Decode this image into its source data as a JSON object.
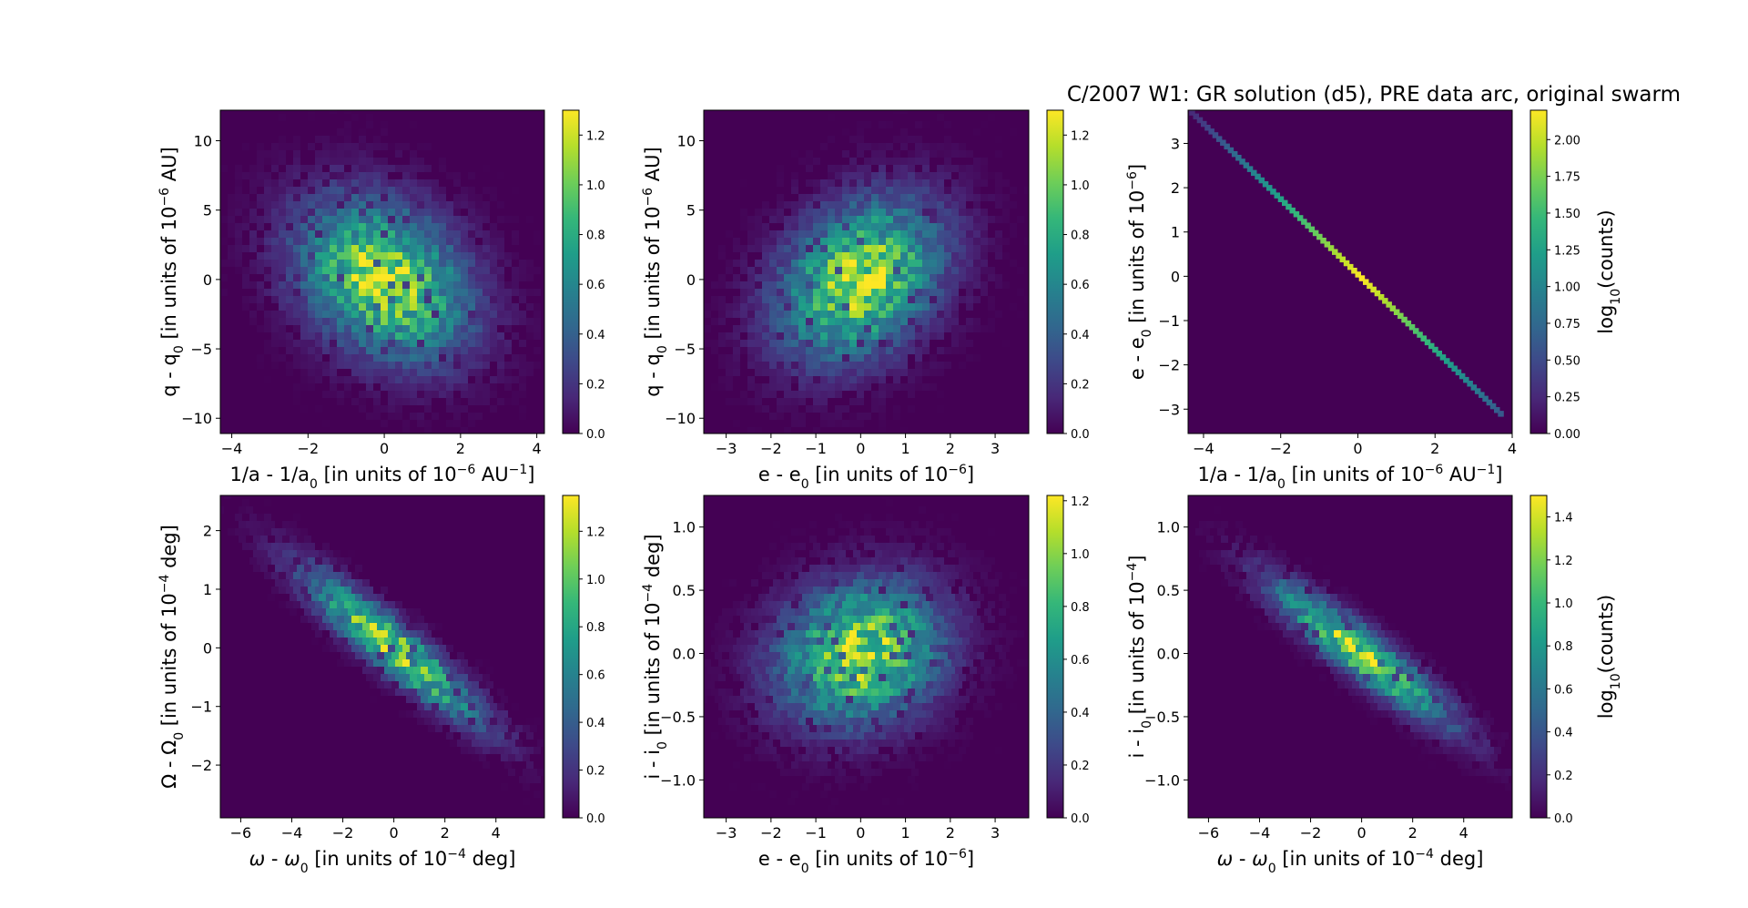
{
  "figure": {
    "title": "C/2007 W1: GR solution (d5), PRE data arc, original swarm",
    "colormap": [
      "#440154",
      "#482878",
      "#3e4989",
      "#31688e",
      "#26828e",
      "#1f9e89",
      "#35b779",
      "#6ece58",
      "#b5de2b",
      "#fde725"
    ]
  },
  "chart_data": [
    {
      "type": "heatmap",
      "id": "p11",
      "xlabel_main": "1/a - 1/a",
      "xlabel_sub": "0",
      "xlabel_tail": " [in units of 10",
      "xlabel_sup": "−6",
      "xlabel_end": " AU",
      "xlabel_sup2": "−1",
      "xlabel_close": "]",
      "ylabel_main": "q - q",
      "ylabel_sub": "0",
      "ylabel_tail": " [in units of 10",
      "ylabel_sup": "−6",
      "ylabel_end": " AU]",
      "xlim": [
        -4.3,
        4.2
      ],
      "ylim": [
        -11.1,
        12.2
      ],
      "xticks": [
        -4,
        -2,
        0,
        2,
        4
      ],
      "xticklabels": [
        "−4",
        "−2",
        "0",
        "2",
        "4"
      ],
      "yticks": [
        -10,
        -5,
        0,
        5,
        10
      ],
      "yticklabels": [
        "−10",
        "−5",
        "0",
        "5",
        "10"
      ],
      "sx": 1.5,
      "sy": 3.8,
      "rho": -0.3,
      "colorbar": {
        "range": [
          0,
          1.3
        ],
        "ticks": [
          0,
          0.2,
          0.4,
          0.6,
          0.8,
          1.0,
          1.2
        ],
        "ticklabels": [
          "0.0",
          "0.2",
          "0.4",
          "0.6",
          "0.8",
          "1.0",
          "1.2"
        ],
        "label": ""
      }
    },
    {
      "type": "heatmap",
      "id": "p12",
      "xlabel_main": "e - e",
      "xlabel_sub": "0",
      "xlabel_tail": " [in units of 10",
      "xlabel_sup": "−6",
      "xlabel_end": "]",
      "ylabel_main": "q - q",
      "ylabel_sub": "0",
      "ylabel_tail": " [in units of 10",
      "ylabel_sup": "−6",
      "ylabel_end": " AU]",
      "xlim": [
        -3.5,
        3.75
      ],
      "ylim": [
        -11.1,
        12.2
      ],
      "xticks": [
        -3,
        -2,
        -1,
        0,
        1,
        2,
        3
      ],
      "xticklabels": [
        "−3",
        "−2",
        "−1",
        "0",
        "1",
        "2",
        "3"
      ],
      "yticks": [
        -10,
        -5,
        0,
        5,
        10
      ],
      "yticklabels": [
        "−10",
        "−5",
        "0",
        "5",
        "10"
      ],
      "sx": 1.2,
      "sy": 3.8,
      "rho": 0.3,
      "colorbar": {
        "range": [
          0,
          1.3
        ],
        "ticks": [
          0,
          0.2,
          0.4,
          0.6,
          0.8,
          1.0,
          1.2
        ],
        "ticklabels": [
          "0.0",
          "0.2",
          "0.4",
          "0.6",
          "0.8",
          "1.0",
          "1.2"
        ],
        "label": ""
      }
    },
    {
      "type": "heatmap",
      "id": "p13",
      "line": true,
      "xlabel_main": "1/a - 1/a",
      "xlabel_sub": "0",
      "xlabel_tail": " [in units of 10",
      "xlabel_sup": "−6",
      "xlabel_end": " AU",
      "xlabel_sup2": "−1",
      "xlabel_close": "]",
      "ylabel_main": "e - e",
      "ylabel_sub": "0",
      "ylabel_tail": " [in units of 10",
      "ylabel_sup": "−6",
      "ylabel_end": "]",
      "xlim": [
        -4.4,
        4.0
      ],
      "ylim": [
        -3.55,
        3.75
      ],
      "xticks": [
        -4,
        -2,
        0,
        2,
        4
      ],
      "xticklabels": [
        "−4",
        "−2",
        "0",
        "2",
        "4"
      ],
      "yticks": [
        -3,
        -2,
        -1,
        0,
        1,
        2,
        3
      ],
      "yticklabels": [
        "−3",
        "−2",
        "−1",
        "0",
        "1",
        "2",
        "3"
      ],
      "line_from": [
        -4.3,
        3.7
      ],
      "line_to": [
        3.7,
        -3.1
      ],
      "colorbar": {
        "range": [
          0,
          2.2
        ],
        "ticks": [
          0,
          0.25,
          0.5,
          0.75,
          1.0,
          1.25,
          1.5,
          1.75,
          2.0
        ],
        "ticklabels": [
          "0.00",
          "0.25",
          "0.50",
          "0.75",
          "1.00",
          "1.25",
          "1.50",
          "1.75",
          "2.00"
        ],
        "label": "log",
        "label_sub": "10",
        "label_tail": "(counts)"
      }
    },
    {
      "type": "heatmap",
      "id": "p21",
      "xlabel_main": "ω - ω",
      "xlabel_sub": "0",
      "xlabel_tail": " [in units of 10",
      "xlabel_sup": "−4",
      "xlabel_end": " deg]",
      "ylabel_main": "Ω - Ω",
      "ylabel_sub": "0",
      "ylabel_tail": " [in units of 10",
      "ylabel_sup": "−4",
      "ylabel_end": " deg]",
      "xlim": [
        -6.8,
        5.9
      ],
      "ylim": [
        -2.9,
        2.6
      ],
      "xticks": [
        -6,
        -4,
        -2,
        0,
        2,
        4
      ],
      "xticklabels": [
        "−6",
        "−4",
        "−2",
        "0",
        "2",
        "4"
      ],
      "yticks": [
        -2,
        -1,
        0,
        1,
        2
      ],
      "yticklabels": [
        "−2",
        "−1",
        "0",
        "1",
        "2"
      ],
      "sx": 2.3,
      "sy": 0.85,
      "rho": -0.92,
      "colorbar": {
        "range": [
          0,
          1.35
        ],
        "ticks": [
          0,
          0.2,
          0.4,
          0.6,
          0.8,
          1.0,
          1.2
        ],
        "ticklabels": [
          "0.0",
          "0.2",
          "0.4",
          "0.6",
          "0.8",
          "1.0",
          "1.2"
        ],
        "label": ""
      }
    },
    {
      "type": "heatmap",
      "id": "p22",
      "xlabel_main": "e - e",
      "xlabel_sub": "0",
      "xlabel_tail": " [in units of 10",
      "xlabel_sup": "−6",
      "xlabel_end": "]",
      "ylabel_main": "i - i",
      "ylabel_sub": "0",
      "ylabel_tail": " [in units of 10",
      "ylabel_sup": "−4",
      "ylabel_end": " deg]",
      "xlim": [
        -3.5,
        3.75
      ],
      "ylim": [
        -1.3,
        1.25
      ],
      "xticks": [
        -3,
        -2,
        -1,
        0,
        1,
        2,
        3
      ],
      "xticklabels": [
        "−3",
        "−2",
        "−1",
        "0",
        "1",
        "2",
        "3"
      ],
      "yticks": [
        -1.0,
        -0.5,
        0.0,
        0.5,
        1.0
      ],
      "yticklabels": [
        "−1.0",
        "−0.5",
        "0.0",
        "0.5",
        "1.0"
      ],
      "sx": 1.2,
      "sy": 0.37,
      "rho": 0.15,
      "colorbar": {
        "range": [
          0,
          1.22
        ],
        "ticks": [
          0,
          0.2,
          0.4,
          0.6,
          0.8,
          1.0,
          1.2
        ],
        "ticklabels": [
          "0.0",
          "0.2",
          "0.4",
          "0.6",
          "0.8",
          "1.0",
          "1.2"
        ],
        "label": ""
      }
    },
    {
      "type": "heatmap",
      "id": "p23",
      "xlabel_main": "ω - ω",
      "xlabel_sub": "0",
      "xlabel_tail": " [in units of 10",
      "xlabel_sup": "−4",
      "xlabel_end": " deg]",
      "ylabel_main": "i - i",
      "ylabel_sub": "0",
      "ylabel_tail": " [in units of 10",
      "ylabel_sup": "−4",
      "ylabel_end": "]",
      "xlim": [
        -6.8,
        5.9
      ],
      "ylim": [
        -1.3,
        1.25
      ],
      "xticks": [
        -6,
        -4,
        -2,
        0,
        2,
        4
      ],
      "xticklabels": [
        "−6",
        "−4",
        "−2",
        "0",
        "2",
        "4"
      ],
      "yticks": [
        -1.0,
        -0.5,
        0.0,
        0.5,
        1.0
      ],
      "yticklabels": [
        "−1.0",
        "−0.5",
        "0.0",
        "0.5",
        "1.0"
      ],
      "sx": 2.3,
      "sy": 0.37,
      "rho": -0.92,
      "colorbar": {
        "range": [
          0,
          1.5
        ],
        "ticks": [
          0,
          0.2,
          0.4,
          0.6,
          0.8,
          1.0,
          1.2,
          1.4
        ],
        "ticklabels": [
          "0.0",
          "0.2",
          "0.4",
          "0.6",
          "0.8",
          "1.0",
          "1.2",
          "1.4"
        ],
        "label": "log",
        "label_sub": "10",
        "label_tail": "(counts)"
      }
    }
  ]
}
